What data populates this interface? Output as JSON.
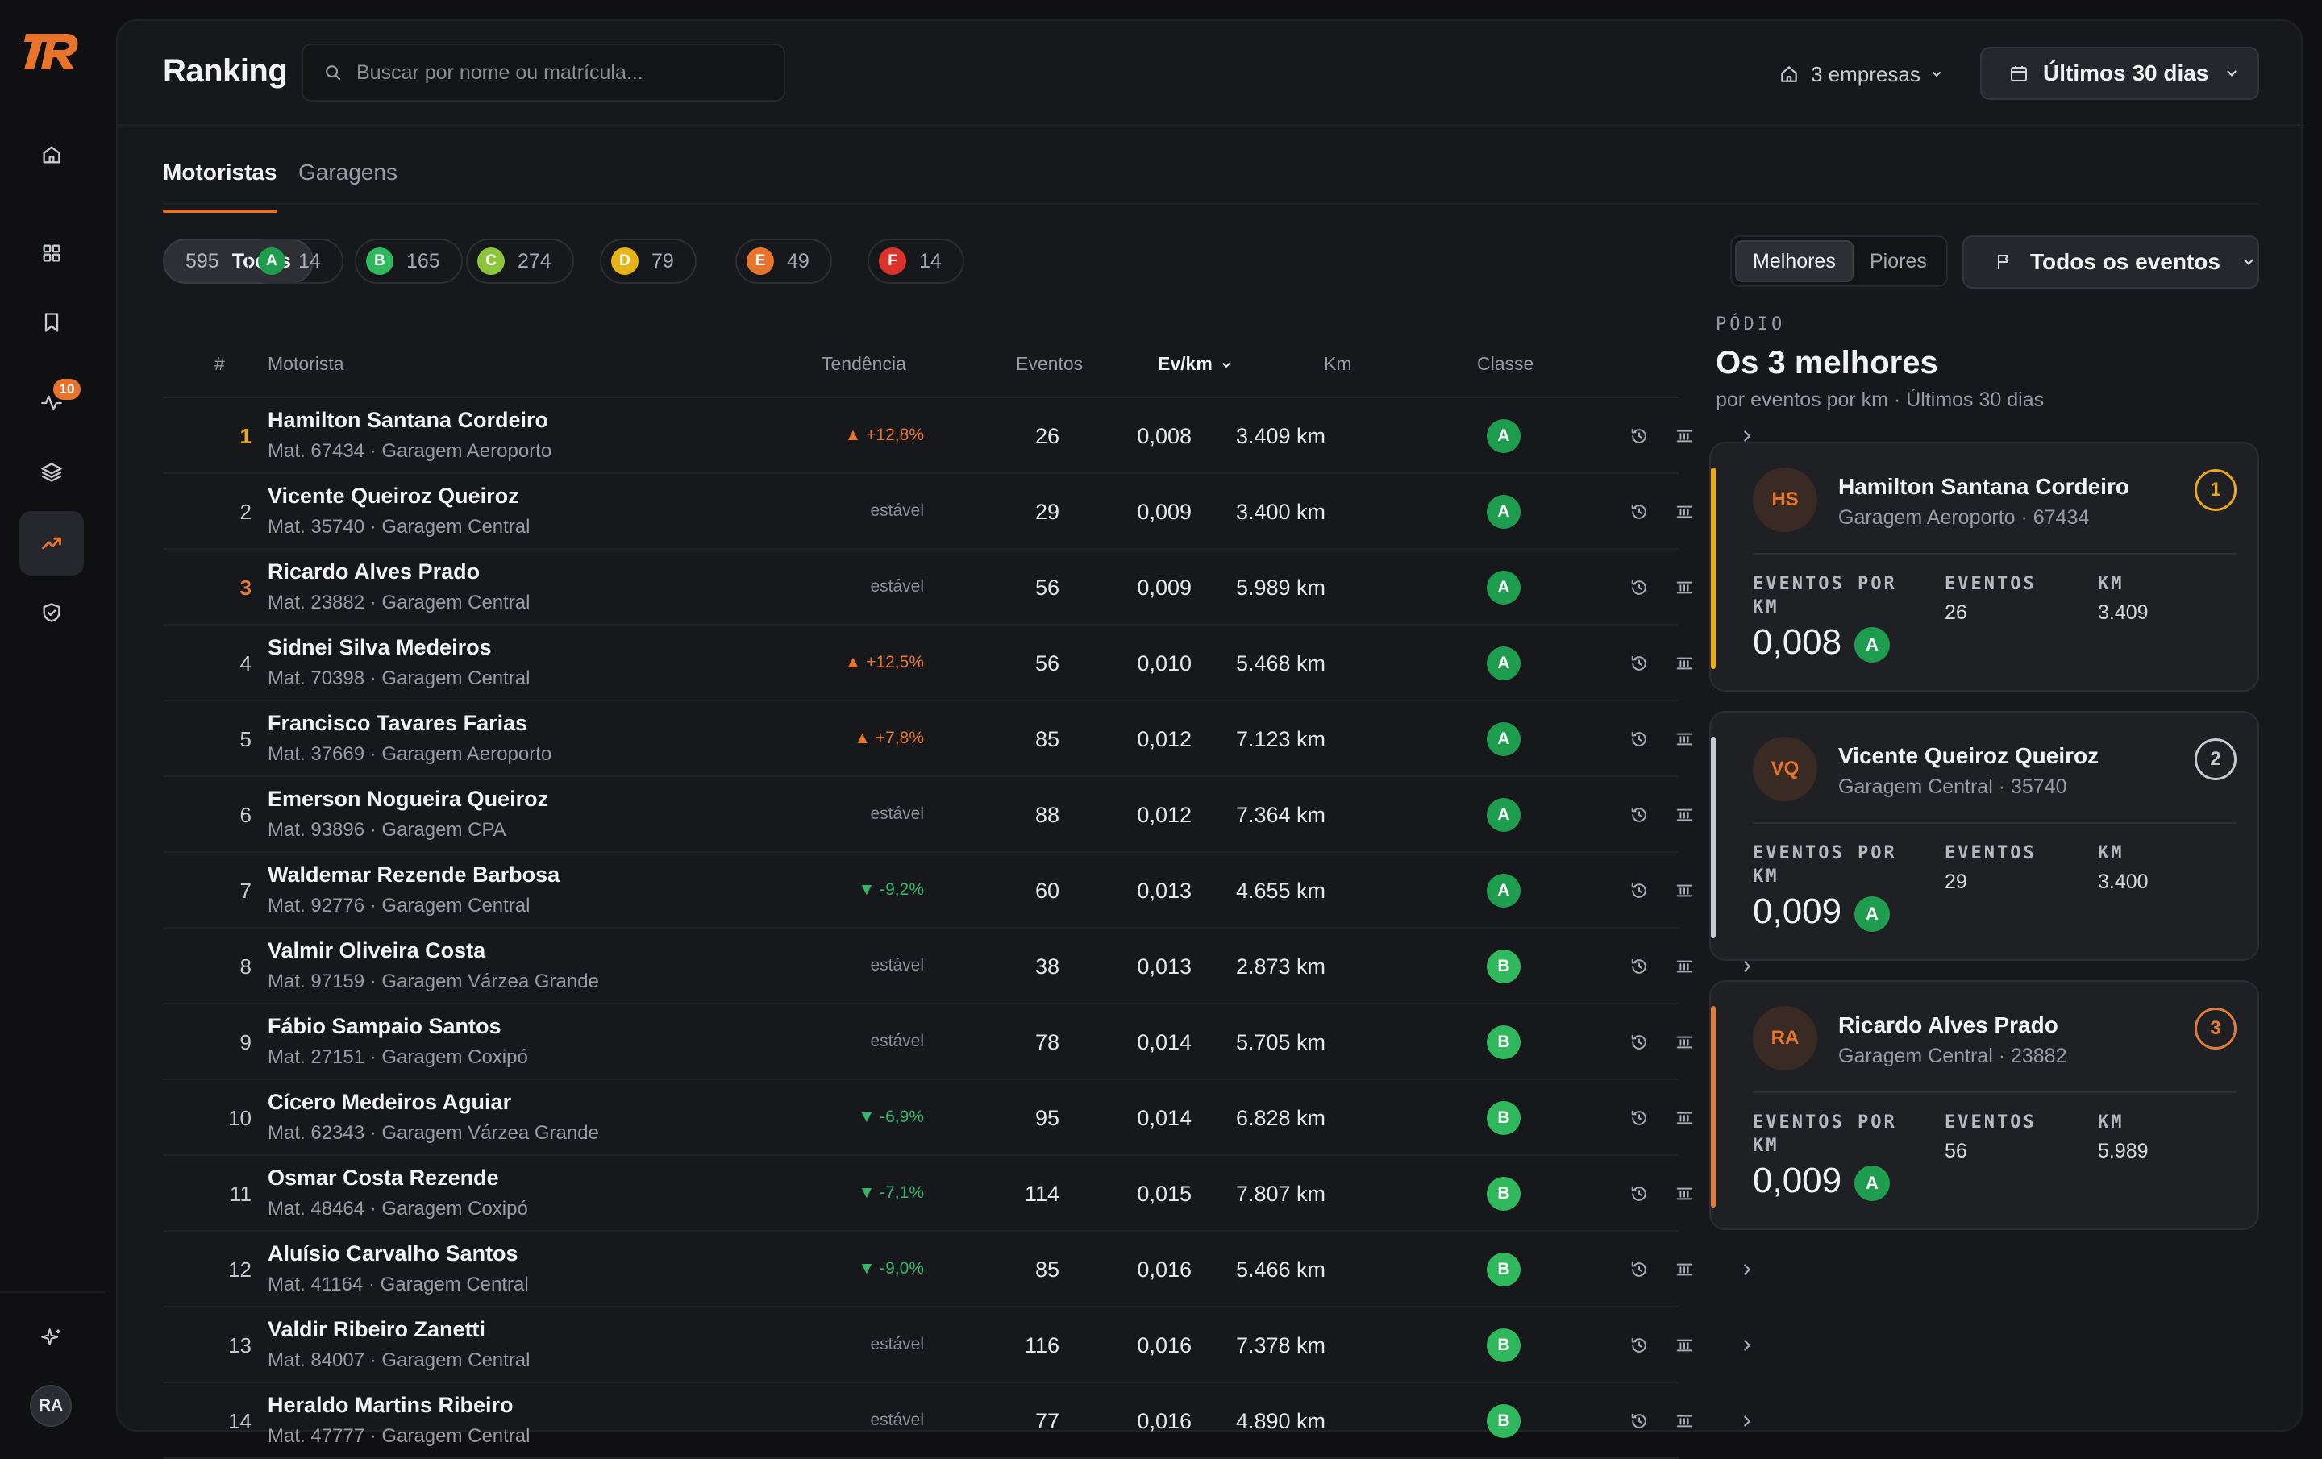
{
  "app": {
    "logo_text": "TR"
  },
  "sidebar": {
    "notification_count": "10",
    "user_initials": "RA"
  },
  "header": {
    "title": "Ranking",
    "search_placeholder": "Buscar por nome ou matrícula...",
    "companies_label": "3 empresas",
    "period_label": "Últimos 30 dias"
  },
  "tabs": [
    {
      "label": "Motoristas",
      "active": true
    },
    {
      "label": "Garagens",
      "active": false
    }
  ],
  "filters": {
    "all": {
      "count": "595",
      "label": "Todos"
    },
    "grades": [
      {
        "grade": "A",
        "count": "14",
        "color": "#1f9d4f"
      },
      {
        "grade": "B",
        "count": "165",
        "color": "#2fb85c"
      },
      {
        "grade": "C",
        "count": "274",
        "color": "#8cc43c"
      },
      {
        "grade": "D",
        "count": "79",
        "color": "#e6b416"
      },
      {
        "grade": "E",
        "count": "49",
        "color": "#e8742c"
      },
      {
        "grade": "F",
        "count": "14",
        "color": "#d9332b"
      }
    ]
  },
  "toggle": {
    "best": "Melhores",
    "worst": "Piores"
  },
  "event_filter": "Todos os eventos",
  "table": {
    "columns": {
      "rank": "#",
      "driver": "Motorista",
      "trend": "Tendência",
      "events": "Eventos",
      "evkm": "Ev/km",
      "km": "Km",
      "class": "Classe"
    },
    "rows": [
      {
        "rank": "1",
        "name": "Hamilton Santana Cordeiro",
        "meta": "Mat. 67434 · Garagem Aeroporto",
        "trend": "▲ +12,8%",
        "trend_dir": "up",
        "events": "26",
        "evkm": "0,008",
        "km": "3.409 km",
        "cls": "A"
      },
      {
        "rank": "2",
        "name": "Vicente Queiroz Queiroz",
        "meta": "Mat. 35740 · Garagem Central",
        "trend": "estável",
        "trend_dir": "flat",
        "events": "29",
        "evkm": "0,009",
        "km": "3.400 km",
        "cls": "A"
      },
      {
        "rank": "3",
        "name": "Ricardo Alves Prado",
        "meta": "Mat. 23882 · Garagem Central",
        "trend": "estável",
        "trend_dir": "flat",
        "events": "56",
        "evkm": "0,009",
        "km": "5.989 km",
        "cls": "A"
      },
      {
        "rank": "4",
        "name": "Sidnei Silva Medeiros",
        "meta": "Mat. 70398 · Garagem Central",
        "trend": "▲ +12,5%",
        "trend_dir": "up",
        "events": "56",
        "evkm": "0,010",
        "km": "5.468 km",
        "cls": "A"
      },
      {
        "rank": "5",
        "name": "Francisco Tavares Farias",
        "meta": "Mat. 37669 · Garagem Aeroporto",
        "trend": "▲ +7,8%",
        "trend_dir": "up",
        "events": "85",
        "evkm": "0,012",
        "km": "7.123 km",
        "cls": "A"
      },
      {
        "rank": "6",
        "name": "Emerson Nogueira Queiroz",
        "meta": "Mat. 93896 · Garagem CPA",
        "trend": "estável",
        "trend_dir": "flat",
        "events": "88",
        "evkm": "0,012",
        "km": "7.364 km",
        "cls": "A"
      },
      {
        "rank": "7",
        "name": "Waldemar Rezende Barbosa",
        "meta": "Mat. 92776 · Garagem Central",
        "trend": "▼ -9,2%",
        "trend_dir": "down",
        "events": "60",
        "evkm": "0,013",
        "km": "4.655 km",
        "cls": "A"
      },
      {
        "rank": "8",
        "name": "Valmir Oliveira Costa",
        "meta": "Mat. 97159 · Garagem Várzea Grande",
        "trend": "estável",
        "trend_dir": "flat",
        "events": "38",
        "evkm": "0,013",
        "km": "2.873 km",
        "cls": "B"
      },
      {
        "rank": "9",
        "name": "Fábio Sampaio Santos",
        "meta": "Mat. 27151 · Garagem Coxipó",
        "trend": "estável",
        "trend_dir": "flat",
        "events": "78",
        "evkm": "0,014",
        "km": "5.705 km",
        "cls": "B"
      },
      {
        "rank": "10",
        "name": "Cícero Medeiros Aguiar",
        "meta": "Mat. 62343 · Garagem Várzea Grande",
        "trend": "▼ -6,9%",
        "trend_dir": "down",
        "events": "95",
        "evkm": "0,014",
        "km": "6.828 km",
        "cls": "B"
      },
      {
        "rank": "11",
        "name": "Osmar Costa Rezende",
        "meta": "Mat. 48464 · Garagem Coxipó",
        "trend": "▼ -7,1%",
        "trend_dir": "down",
        "events": "114",
        "evkm": "0,015",
        "km": "7.807 km",
        "cls": "B"
      },
      {
        "rank": "12",
        "name": "Aluísio Carvalho Santos",
        "meta": "Mat. 41164 · Garagem Central",
        "trend": "▼ -9,0%",
        "trend_dir": "down",
        "events": "85",
        "evkm": "0,016",
        "km": "5.466 km",
        "cls": "B"
      },
      {
        "rank": "13",
        "name": "Valdir Ribeiro Zanetti",
        "meta": "Mat. 84007 · Garagem Central",
        "trend": "estável",
        "trend_dir": "flat",
        "events": "116",
        "evkm": "0,016",
        "km": "7.378 km",
        "cls": "B"
      },
      {
        "rank": "14",
        "name": "Heraldo Martins Ribeiro",
        "meta": "Mat. 47777 · Garagem Central",
        "trend": "estável",
        "trend_dir": "flat",
        "events": "77",
        "evkm": "0,016",
        "km": "4.890 km",
        "cls": "B"
      }
    ]
  },
  "podium": {
    "kicker": "Pódio",
    "title": "Os 3 melhores",
    "subtitle": "por eventos por km · Últimos 30 dias",
    "stat_labels": {
      "evkm": "Eventos por km",
      "events": "Eventos",
      "km": "Km"
    },
    "cards": [
      {
        "initials": "HS",
        "name": "Hamilton Santana Cordeiro",
        "meta": "Garagem Aeroporto · 67434",
        "place": "1",
        "accent": "#e9a91f",
        "evkm": "0,008",
        "cls": "A",
        "events": "26",
        "km": "3.409"
      },
      {
        "initials": "VQ",
        "name": "Vicente Queiroz Queiroz",
        "meta": "Garagem Central · 35740",
        "place": "2",
        "accent": "#c8c9ce",
        "evkm": "0,009",
        "cls": "A",
        "events": "29",
        "km": "3.400"
      },
      {
        "initials": "RA",
        "name": "Ricardo Alves Prado",
        "meta": "Garagem Central · 23882",
        "place": "3",
        "accent": "#e07c3c",
        "evkm": "0,009",
        "cls": "A",
        "events": "56",
        "km": "5.989"
      }
    ]
  },
  "colors": {
    "accent": "#e8742c",
    "grade_A": "#1f9d4f",
    "grade_B": "#2fb85c",
    "trend_up": "#e8742c",
    "trend_down": "#34b56a"
  }
}
